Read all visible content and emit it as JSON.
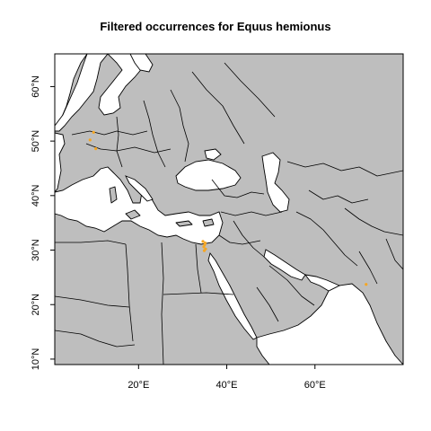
{
  "title": "Filtered occurrences for Equus hemionus",
  "map": {
    "land_color": "#bebebe",
    "water_color": "#ffffff",
    "point_color": "#f5a623",
    "lon_range": [
      1,
      80
    ],
    "lat_range": [
      9,
      66
    ],
    "x_ticks": [
      {
        "value": 20,
        "label": "20°E"
      },
      {
        "value": 40,
        "label": "40°E"
      },
      {
        "value": 60,
        "label": "60°E"
      }
    ],
    "y_ticks": [
      {
        "value": 10,
        "label": "10°N"
      },
      {
        "value": 20,
        "label": "20°N"
      },
      {
        "value": 30,
        "label": "30°N"
      },
      {
        "value": 40,
        "label": "40°N"
      },
      {
        "value": 50,
        "label": "50°N"
      },
      {
        "value": 60,
        "label": "60°N"
      }
    ],
    "occurrences": [
      {
        "lon": 9.8,
        "lat": 51.6
      },
      {
        "lon": 9.0,
        "lat": 50.2
      },
      {
        "lon": 10.3,
        "lat": 48.6
      },
      {
        "lon": 34.6,
        "lat": 31.6
      },
      {
        "lon": 35.0,
        "lat": 31.0
      },
      {
        "lon": 34.8,
        "lat": 30.6
      },
      {
        "lon": 35.2,
        "lat": 30.2
      },
      {
        "lon": 34.9,
        "lat": 29.9
      },
      {
        "lon": 35.1,
        "lat": 31.3
      },
      {
        "lon": 71.6,
        "lat": 23.7
      }
    ]
  }
}
